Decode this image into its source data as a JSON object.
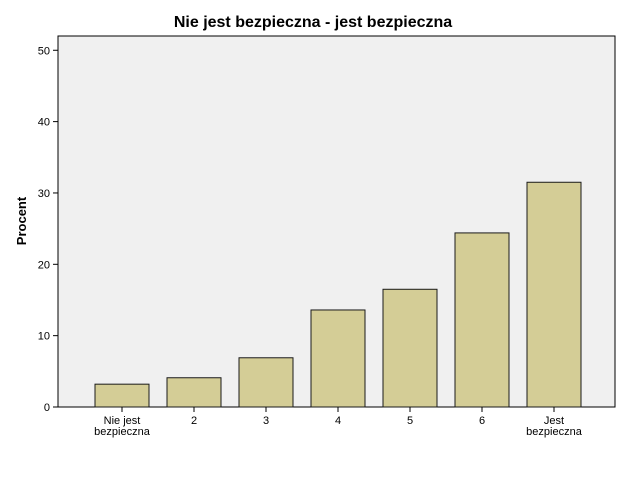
{
  "chart_data": {
    "type": "bar",
    "title": "Nie jest bezpieczna - jest bezpieczna",
    "xlabel": "",
    "ylabel": "Procent",
    "categories": [
      [
        "Nie jest",
        "bezpieczna"
      ],
      [
        "2"
      ],
      [
        "3"
      ],
      [
        "4"
      ],
      [
        "5"
      ],
      [
        "6"
      ],
      [
        "Jest",
        "bezpieczna"
      ]
    ],
    "values": [
      3.2,
      4.1,
      6.9,
      13.6,
      16.5,
      24.4,
      31.5
    ],
    "ylim": [
      0,
      52
    ],
    "yticks": [
      0,
      10,
      20,
      30,
      40,
      50
    ],
    "grid": false,
    "legend": "none",
    "colors": {
      "bar_fill": "#d4cd96",
      "bar_stroke": "#1a1a1a",
      "plot_bg": "#f0f0f0",
      "axis": "#000000"
    }
  }
}
